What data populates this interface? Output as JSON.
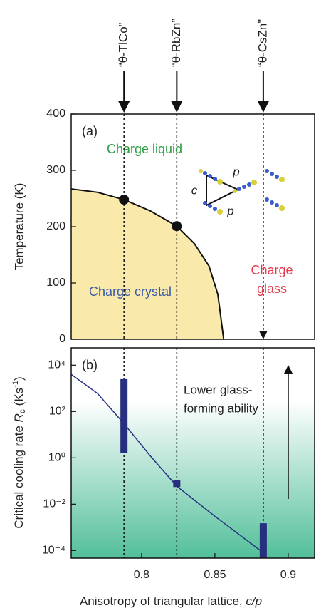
{
  "chart_data": [
    {
      "type": "phase",
      "panel_label": "(a)",
      "ylabel": "Temperature (K)",
      "xlim": [
        0.752,
        0.918
      ],
      "ylim": [
        0,
        400
      ],
      "yticks": [
        0,
        100,
        200,
        300,
        400
      ],
      "boundary_x": [
        0.752,
        0.77,
        0.788,
        0.806,
        0.824,
        0.836,
        0.846,
        0.852,
        0.856
      ],
      "boundary_y": [
        267,
        261,
        248,
        228,
        201,
        170,
        130,
        80,
        0
      ],
      "fill_color": "#f9e9ab",
      "points_x": [
        0.788,
        0.824
      ],
      "points_y": [
        248,
        201
      ],
      "materials": [
        {
          "label": "“θ-TlCo”",
          "x": 0.788
        },
        {
          "label": "“θ-RbZn”",
          "x": 0.824
        },
        {
          "label": "“θ-CsZn”",
          "x": 0.883
        }
      ],
      "liquid_label": "Charge liquid",
      "crystal_label": "Charge crystal",
      "glass_label": [
        "Charge",
        "glass"
      ],
      "lattice_labels": [
        "c",
        "p",
        "p"
      ]
    },
    {
      "type": "log-bars",
      "panel_label": "(b)",
      "ylog": true,
      "ylabel": [
        "Critical cooling rate ",
        "R",
        "c",
        " (Ks",
        "-1",
        ")"
      ],
      "xlabel": [
        "Anisotropy of triangular lattice, ",
        "c/p"
      ],
      "xlim": [
        0.752,
        0.918
      ],
      "xticks": [
        0.8,
        0.85,
        0.9
      ],
      "ylim": [
        4.7e-05,
        56000
      ],
      "yticks": [
        {
          "value": 0.0001,
          "label": "10⁻⁴"
        },
        {
          "value": 0.01,
          "label": "10⁻²"
        },
        {
          "value": 1,
          "label": "10⁰"
        },
        {
          "value": 100,
          "label": "10²"
        },
        {
          "value": 10000,
          "label": "10⁴"
        }
      ],
      "bars": [
        {
          "x": 0.788,
          "low": 1.6,
          "high": 2500
        },
        {
          "x": 0.824,
          "low": 0.055,
          "high": 0.11
        },
        {
          "x": 0.883,
          "low": 4.7e-05,
          "high": 0.0015
        }
      ],
      "bar_color": "#27307f",
      "curve_x": [
        0.752,
        0.77,
        0.788,
        0.806,
        0.824,
        0.85,
        0.881
      ],
      "curve_y": [
        4000,
        600,
        30,
        1.2,
        0.06,
        0.003,
        0.0001
      ],
      "annotation": [
        "Lower glass-",
        "forming ability"
      ]
    }
  ]
}
